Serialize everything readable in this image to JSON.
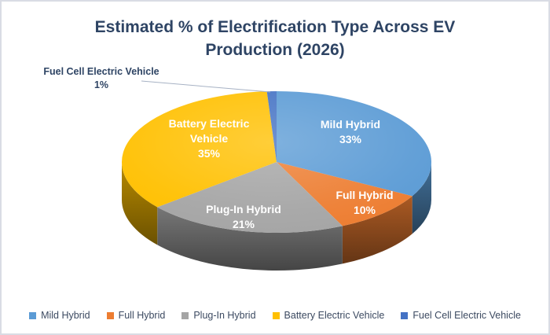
{
  "chart_data": {
    "type": "pie",
    "is_3d": true,
    "title": "Estimated % of Electrification Type Across EV Production (2026)",
    "start_angle_deg": 0,
    "direction": "clockwise",
    "legend_position": "bottom",
    "data_labels": "category name + percentage",
    "title_color": "#2E4464",
    "background_color": "#FFFFFF",
    "border_color": "#D9DCE4",
    "slices": [
      {
        "label": "Mild Hybrid",
        "value": 33,
        "pct_label": "33%",
        "color": "#5B9BD5"
      },
      {
        "label": "Full Hybrid",
        "value": 10,
        "pct_label": "10%",
        "color": "#ED7D31"
      },
      {
        "label": "Plug-In Hybrid",
        "value": 21,
        "pct_label": "21%",
        "color": "#A5A5A5"
      },
      {
        "label": "Battery Electric Vehicle",
        "value": 35,
        "pct_label": "35%",
        "color": "#FFC000"
      },
      {
        "label": "Fuel Cell Electric Vehicle",
        "value": 1,
        "pct_label": "1%",
        "color": "#4472C4"
      }
    ]
  }
}
